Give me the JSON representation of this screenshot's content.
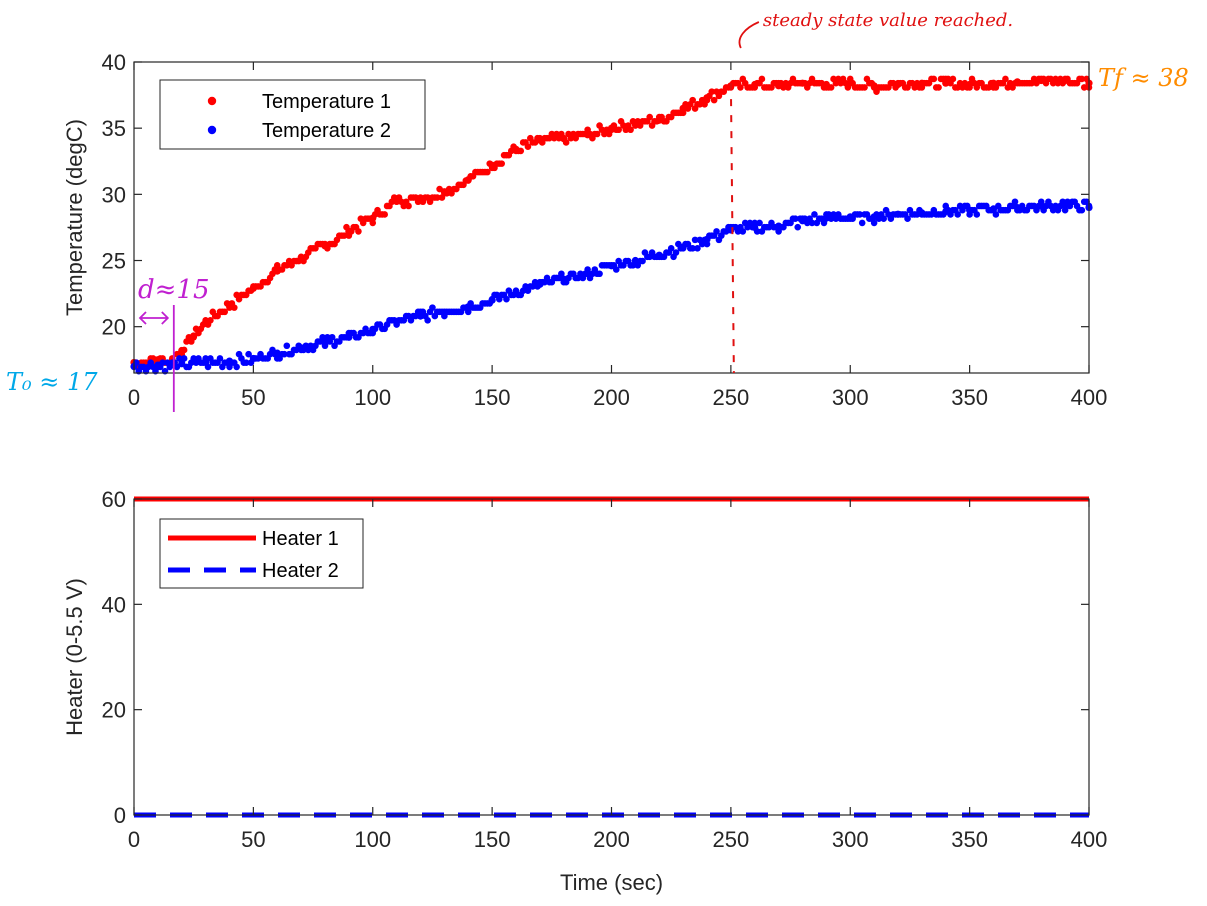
{
  "colors": {
    "red": "#ff0000",
    "blue": "#0000ff",
    "axis": "#262626",
    "orange": "#ff8c00",
    "cyan": "#00a8e8",
    "purple": "#c020d0",
    "annot_red": "#e01010"
  },
  "chart_data": [
    {
      "type": "scatter",
      "xlabel": "",
      "ylabel": "Temperature (degC)",
      "xlim": [
        0,
        400
      ],
      "ylim": [
        16.5,
        40
      ],
      "xticks": [
        0,
        50,
        100,
        150,
        200,
        250,
        300,
        350,
        400
      ],
      "yticks": [
        20,
        25,
        30,
        35,
        40
      ],
      "grid": false,
      "legend": "top-left",
      "series": [
        {
          "name": "Temperature 1",
          "color": "#ff0000",
          "x": [
            0,
            10,
            16,
            20,
            25,
            30,
            40,
            50,
            60,
            70,
            80,
            90,
            100,
            110,
            120,
            130,
            140,
            150,
            160,
            170,
            180,
            190,
            200,
            210,
            220,
            230,
            240,
            250,
            260,
            270,
            280,
            290,
            300,
            310,
            320,
            330,
            340,
            350,
            360,
            370,
            380,
            390,
            400
          ],
          "y": [
            17.3,
            17.5,
            17.4,
            18.2,
            19.3,
            20.3,
            21.6,
            22.9,
            24.2,
            25.2,
            26.1,
            27.2,
            28.2,
            29.5,
            29.7,
            30.2,
            31.1,
            32.2,
            33.4,
            34.1,
            34.2,
            34.5,
            35.0,
            35.3,
            35.6,
            36.5,
            37.3,
            38.2,
            38.3,
            38.2,
            38.4,
            38.3,
            38.4,
            38.2,
            38.3,
            38.4,
            38.4,
            38.3,
            38.4,
            38.5,
            38.6,
            38.6,
            38.4
          ]
        },
        {
          "name": "Temperature 2",
          "color": "#0000ff",
          "x": [
            0,
            10,
            20,
            30,
            40,
            50,
            60,
            70,
            80,
            90,
            100,
            110,
            120,
            130,
            140,
            150,
            160,
            170,
            180,
            190,
            200,
            210,
            220,
            230,
            240,
            250,
            260,
            270,
            280,
            290,
            300,
            310,
            320,
            330,
            340,
            350,
            360,
            370,
            380,
            390,
            400
          ],
          "y": [
            17.0,
            17.1,
            17.2,
            17.3,
            17.4,
            17.6,
            18.0,
            18.4,
            18.8,
            19.2,
            19.8,
            20.4,
            20.8,
            21.1,
            21.5,
            22.0,
            22.6,
            23.2,
            23.6,
            24.0,
            24.6,
            25.0,
            25.4,
            26.0,
            26.6,
            27.3,
            27.5,
            27.6,
            28.0,
            28.2,
            28.3,
            28.3,
            28.5,
            28.6,
            28.7,
            28.8,
            28.9,
            29.0,
            29.1,
            29.2,
            29.0
          ]
        }
      ]
    },
    {
      "type": "line",
      "xlabel": "Time (sec)",
      "ylabel": "Heater (0-5.5 V)",
      "xlim": [
        0,
        400
      ],
      "ylim": [
        0,
        60
      ],
      "xticks": [
        0,
        50,
        100,
        150,
        200,
        250,
        300,
        350,
        400
      ],
      "yticks": [
        0,
        20,
        40,
        60
      ],
      "grid": false,
      "legend": "top-left",
      "series": [
        {
          "name": "Heater 1",
          "color": "#ff0000",
          "style": "solid",
          "x": [
            0,
            400
          ],
          "y": [
            60,
            60
          ]
        },
        {
          "name": "Heater 2",
          "color": "#0000ff",
          "style": "dashed",
          "x": [
            0,
            400
          ],
          "y": [
            0,
            0
          ]
        }
      ]
    }
  ],
  "annotations": {
    "steady_state": "steady state value reached.",
    "tf": "Tf ≈ 38",
    "t0": "T₀ ≈ 17",
    "d": "d≈15"
  }
}
